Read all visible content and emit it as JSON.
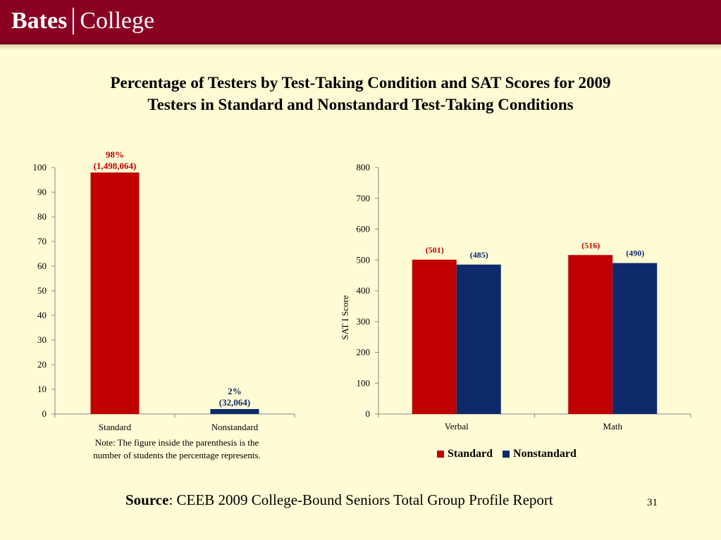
{
  "header": {
    "logo_left": "Bates",
    "logo_right": "College"
  },
  "title_line1": "Percentage of Testers by Test-Taking Condition and SAT Scores for 2009",
  "title_line2": "Testers in Standard and Nonstandard Test-Taking Conditions",
  "note_line1": "Note: The figure inside the parenthesis is the",
  "note_line2": "number of students the percentage represents.",
  "source_label": "Source",
  "source_text": ": CEEB 2009 College-Bound Seniors Total Group Profile Report",
  "page_number": "31",
  "colors": {
    "standard": "#c00000",
    "nonstandard": "#0d2a6b",
    "banner": "#8a0022",
    "background": "#fffbd5"
  },
  "chart_data": [
    {
      "type": "bar",
      "categories": [
        "Standard",
        "Nonstandard"
      ],
      "values": [
        98,
        2
      ],
      "ylim": [
        0,
        100
      ],
      "yticks": [
        0,
        10,
        20,
        30,
        40,
        50,
        60,
        70,
        80,
        90,
        100
      ],
      "xlabel": "",
      "ylabel": "",
      "data_labels": [
        {
          "line1": "98%",
          "line2": "(1,498,064)"
        },
        {
          "line1": "2%",
          "line2": "(32,064)"
        }
      ],
      "grid": false
    },
    {
      "type": "bar",
      "categories": [
        "Verbal",
        "Math"
      ],
      "series": [
        {
          "name": "Standard",
          "values": [
            501,
            516
          ],
          "labels": [
            "(501)",
            "(516)"
          ]
        },
        {
          "name": "Nonstandard",
          "values": [
            485,
            490
          ],
          "labels": [
            "(485)",
            "(490)"
          ]
        }
      ],
      "ylim": [
        0,
        800
      ],
      "yticks": [
        0,
        100,
        200,
        300,
        400,
        500,
        600,
        700,
        800
      ],
      "xlabel": "",
      "ylabel": "SAT I Score",
      "legend": "bottom",
      "grid": false
    }
  ]
}
